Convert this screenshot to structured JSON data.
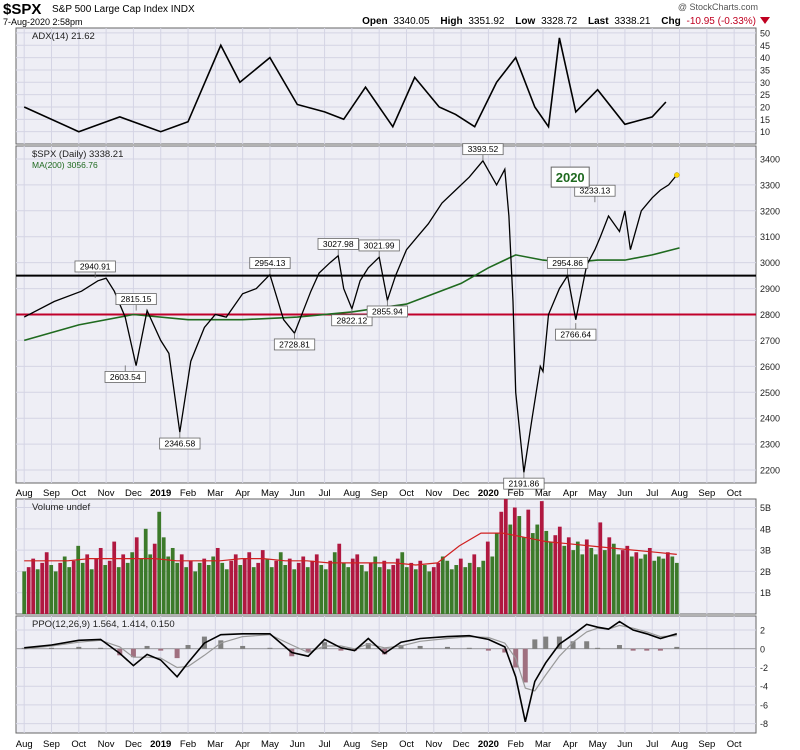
{
  "header": {
    "ticker": "$SPX",
    "name": "S&P 500 Large Cap Index",
    "exchange": "INDX",
    "datetime": "7-Aug-2020 2:58pm",
    "brand": "@ StockCharts.com",
    "quote": {
      "open_label": "Open",
      "open": "3340.05",
      "high_label": "High",
      "high": "3351.92",
      "low_label": "Low",
      "low": "3328.72",
      "last_label": "Last",
      "last": "3338.21",
      "chg_label": "Chg",
      "chg": "-10.95 (-0.33%)"
    },
    "chg_color": "#c00020"
  },
  "chart_data": [
    {
      "panel": "adx",
      "type": "line",
      "title": "ADX(14) 21.62",
      "ylim": [
        5,
        52
      ],
      "yticks": [
        10,
        15,
        20,
        25,
        30,
        35,
        40,
        45,
        50
      ],
      "series": [
        {
          "name": "ADX(14)",
          "x": [
            0,
            2,
            3.5,
            5,
            6,
            7.2,
            7.9,
            9,
            10,
            11,
            11.7,
            12.5,
            13.5,
            14.3,
            15.2,
            15.8,
            16.5,
            17.3,
            18,
            18.7,
            19.2,
            19.6,
            20.2,
            21,
            22,
            23,
            23.5
          ],
          "values": [
            20,
            10,
            16,
            10,
            14,
            45,
            30,
            40,
            21,
            18,
            15,
            28,
            12,
            32,
            20,
            17,
            12,
            30,
            40,
            20,
            12,
            48,
            18,
            27,
            13,
            16,
            22
          ]
        }
      ],
      "color": "#000000"
    },
    {
      "panel": "price",
      "type": "line",
      "title": "$SPX (Daily) 3338.21",
      "ma_label": "MA(200) 3056.76",
      "ylim": [
        2150,
        3450
      ],
      "yticks": [
        2200,
        2300,
        2400,
        2500,
        2600,
        2700,
        2800,
        2900,
        3000,
        3100,
        3200,
        3300,
        3400
      ],
      "x": [
        0,
        1.1,
        2.1,
        2.7,
        3.0,
        3.3,
        3.7,
        4.1,
        4.5,
        5.0,
        5.3,
        5.7,
        6.1,
        6.6,
        7.0,
        7.4,
        8.0,
        8.5,
        9.0,
        9.5,
        9.9,
        10.5,
        10.8,
        11.2,
        11.5,
        11.7,
        12.0,
        12.3,
        12.6,
        13.0,
        13.3,
        13.6,
        14.0,
        14.4,
        14.8,
        15.3,
        15.8,
        16.3,
        16.8,
        17.3,
        17.6,
        17.75,
        17.9,
        18.0,
        18.3,
        18.6,
        18.9,
        19.0,
        19.2,
        19.6,
        19.9,
        20.2,
        20.6,
        20.9,
        21.1,
        21.4,
        21.8,
        22.0,
        22.2,
        22.6,
        23.0,
        23.3,
        23.6,
        23.9
      ],
      "values": [
        2790,
        2850,
        2890,
        2930,
        2940,
        2890,
        2790,
        2603,
        2815,
        2700,
        2650,
        2346,
        2620,
        2750,
        2800,
        2790,
        2880,
        2900,
        2954,
        2780,
        2728,
        2890,
        2960,
        3000,
        3027,
        2900,
        2822,
        2930,
        2980,
        3021,
        2855,
        2950,
        3050,
        3100,
        3150,
        3230,
        3280,
        3330,
        3393,
        3300,
        3360,
        3180,
        2850,
        2500,
        2191,
        2400,
        2600,
        2580,
        2800,
        2900,
        2950,
        2780,
        2990,
        3050,
        3100,
        3180,
        3120,
        3200,
        3050,
        3200,
        3250,
        3280,
        3300,
        3338
      ],
      "ma200": {
        "x": [
          0,
          2,
          4,
          6,
          8,
          10,
          12,
          14,
          16,
          17,
          18,
          19,
          20,
          21,
          22,
          23,
          24
        ],
        "values": [
          2700,
          2760,
          2800,
          2780,
          2780,
          2790,
          2810,
          2840,
          2920,
          2980,
          3030,
          3010,
          3000,
          3010,
          3010,
          3030,
          3057
        ]
      },
      "hlines": [
        {
          "value": 2950,
          "color": "#000000"
        },
        {
          "value": 2800,
          "color": "#c0002a"
        }
      ],
      "annotations": [
        {
          "x": 2.6,
          "y": 2940.91,
          "label": "2940.91"
        },
        {
          "x": 4.1,
          "y": 2815.15,
          "label": "2815.15"
        },
        {
          "x": 3.7,
          "y": 2603.54,
          "label": "2603.54"
        },
        {
          "x": 5.7,
          "y": 2346.58,
          "label": "2346.58"
        },
        {
          "x": 9.0,
          "y": 2954.13,
          "label": "2954.13"
        },
        {
          "x": 9.9,
          "y": 2728.81,
          "label": "2728.81"
        },
        {
          "x": 11.5,
          "y": 3027.98,
          "label": "3027.98"
        },
        {
          "x": 12.0,
          "y": 2822.12,
          "label": "2822.12"
        },
        {
          "x": 13.0,
          "y": 3021.99,
          "label": "3021.99"
        },
        {
          "x": 13.3,
          "y": 2855.94,
          "label": "2855.94"
        },
        {
          "x": 16.8,
          "y": 3393.52,
          "label": "3393.52"
        },
        {
          "x": 18.3,
          "y": 2191.86,
          "label": "2191.86"
        },
        {
          "x": 19.9,
          "y": 2954.86,
          "label": "2954.86"
        },
        {
          "x": 20.2,
          "y": 2766.64,
          "label": "2766.64"
        },
        {
          "x": 20.9,
          "y": 3233.13,
          "label": "3233.13"
        }
      ],
      "callout": "2020"
    },
    {
      "panel": "volume",
      "type": "bar",
      "title": "Volume undef",
      "ylim": [
        0,
        5.4
      ],
      "yticks": [
        1,
        2,
        3,
        4,
        5
      ],
      "ytick_labels": [
        "1B",
        "2B",
        "3B",
        "4B",
        "5B"
      ],
      "values": [
        2.0,
        2.2,
        2.6,
        2.1,
        2.4,
        2.9,
        2.3,
        2.0,
        2.4,
        2.7,
        2.2,
        2.5,
        3.2,
        2.4,
        2.8,
        2.1,
        2.6,
        3.1,
        2.3,
        2.5,
        3.4,
        2.2,
        2.8,
        2.4,
        2.9,
        3.6,
        2.6,
        4.0,
        2.8,
        3.3,
        4.8,
        3.6,
        2.7,
        3.1,
        2.4,
        2.8,
        2.2,
        2.5,
        2.0,
        2.4,
        2.6,
        2.3,
        2.7,
        3.1,
        2.4,
        2.1,
        2.5,
        2.8,
        2.3,
        2.6,
        2.9,
        2.2,
        2.4,
        3.0,
        2.6,
        2.2,
        2.5,
        2.9,
        2.3,
        2.6,
        2.1,
        2.4,
        2.7,
        2.2,
        2.5,
        2.8,
        2.3,
        2.1,
        2.5,
        2.9,
        3.3,
        2.4,
        2.2,
        2.6,
        2.8,
        2.3,
        2.0,
        2.4,
        2.7,
        2.2,
        2.5,
        2.1,
        2.3,
        2.6,
        2.9,
        2.2,
        2.4,
        2.1,
        2.5,
        2.3,
        2.0,
        2.2,
        2.4,
        2.7,
        2.5,
        2.1,
        2.3,
        2.6,
        2.2,
        2.4,
        2.8,
        2.2,
        2.5,
        3.4,
        2.7,
        3.8,
        4.8,
        5.4,
        4.2,
        5.0,
        4.6,
        3.6,
        4.9,
        3.8,
        4.2,
        5.3,
        3.9,
        3.4,
        3.7,
        4.1,
        3.2,
        3.6,
        3.0,
        3.4,
        2.8,
        3.5,
        3.1,
        2.8,
        4.3,
        3.0,
        3.6,
        3.3,
        2.8,
        3.0,
        3.2,
        2.7,
        2.9,
        2.6,
        2.8,
        3.1,
        2.5,
        2.7,
        2.6,
        2.9,
        2.7,
        2.4
      ],
      "ma_values": [
        2.5,
        2.5,
        2.5,
        2.6,
        2.6,
        2.6,
        2.6,
        2.5,
        2.5,
        2.5,
        2.6,
        2.6,
        2.5,
        2.5,
        2.4,
        2.4,
        2.4,
        2.4,
        2.3,
        2.4,
        3.2,
        3.8,
        3.8,
        3.6,
        3.4,
        3.3,
        3.2,
        3.1,
        3.0,
        2.9,
        2.8
      ],
      "up_color": "#3c7a2a",
      "down_color": "#b01840",
      "ma_color": "#d02020"
    },
    {
      "panel": "ppo",
      "type": "line",
      "title": "PPO(12,26,9) 1.564, 1.414, 0.150",
      "ylim": [
        -9,
        3.5
      ],
      "yticks": [
        -8,
        -6,
        -4,
        -2,
        0,
        2
      ],
      "series": [
        {
          "name": "PPO",
          "x": [
            0,
            1,
            2,
            2.8,
            3.5,
            4.0,
            4.5,
            5.0,
            5.6,
            6.0,
            6.6,
            7.2,
            8,
            9,
            9.8,
            10.4,
            11,
            11.6,
            12.1,
            12.6,
            13.2,
            13.8,
            14.5,
            15.5,
            16.3,
            17,
            17.6,
            18.0,
            18.35,
            18.7,
            19.1,
            19.6,
            20.1,
            20.6,
            21,
            21.4,
            21.8,
            22.3,
            22.8,
            23.3,
            23.9
          ],
          "values": [
            0.1,
            0.4,
            0.9,
            1.0,
            -0.5,
            -1.8,
            -0.6,
            -1.2,
            -3.0,
            -1.5,
            0.6,
            1.5,
            1.6,
            1.6,
            -0.4,
            -0.8,
            1.0,
            0.1,
            -0.2,
            1.1,
            -0.5,
            0.7,
            1.1,
            1.3,
            1.4,
            1.0,
            0.2,
            -3.0,
            -7.8,
            -3.5,
            -1.5,
            0.5,
            1.5,
            2.6,
            2.3,
            2.1,
            2.9,
            2.0,
            1.6,
            1.1,
            1.6
          ]
        },
        {
          "name": "Signal",
          "x": [
            0,
            1,
            2,
            2.8,
            3.5,
            4.0,
            4.5,
            5.0,
            5.6,
            6.0,
            6.6,
            7.2,
            8,
            9,
            9.8,
            10.4,
            11,
            11.6,
            12.1,
            12.6,
            13.2,
            13.8,
            14.5,
            15.5,
            16.3,
            17,
            17.6,
            18.0,
            18.35,
            18.7,
            19.1,
            19.6,
            20.1,
            20.6,
            21,
            21.4,
            21.8,
            22.3,
            22.8,
            23.3,
            23.9
          ],
          "values": [
            0.0,
            0.3,
            0.7,
            0.9,
            0.2,
            -0.9,
            -0.9,
            -1.0,
            -2.0,
            -1.9,
            -0.7,
            0.6,
            1.3,
            1.5,
            0.4,
            -0.4,
            0.3,
            0.3,
            0.0,
            0.5,
            0.1,
            0.3,
            0.8,
            1.1,
            1.3,
            1.2,
            0.6,
            -1.0,
            -4.2,
            -4.5,
            -2.8,
            -0.8,
            0.7,
            1.8,
            2.2,
            2.1,
            2.5,
            2.2,
            1.8,
            1.3,
            1.4
          ]
        }
      ],
      "hist_color": "#808080",
      "hist_neg_color": "#a07080"
    }
  ],
  "x_axis": {
    "labels": [
      "Aug",
      "Sep",
      "Oct",
      "Nov",
      "Dec",
      "2019",
      "Feb",
      "Mar",
      "Apr",
      "May",
      "Jun",
      "Jul",
      "Aug",
      "Sep",
      "Oct",
      "Nov",
      "Dec",
      "2020",
      "Feb",
      "Mar",
      "Apr",
      "May",
      "Jun",
      "Jul",
      "Aug",
      "Sep",
      "Oct"
    ],
    "bold_labels": [
      "2019",
      "2020"
    ],
    "range": [
      -0.3,
      26.8
    ]
  }
}
